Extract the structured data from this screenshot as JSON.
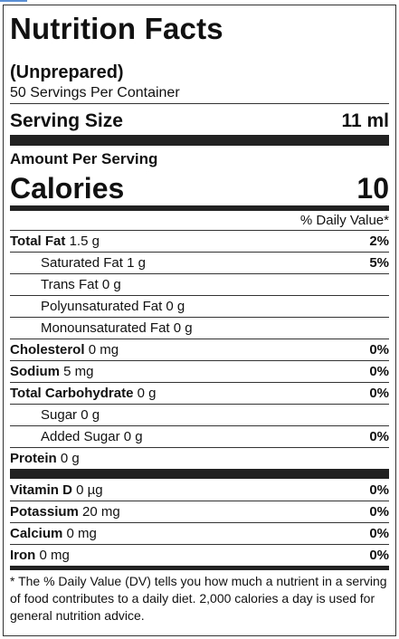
{
  "title": "Nutrition Facts",
  "subtitle": "(Unprepared)",
  "servings_per_container": "50 Servings Per Container",
  "serving_size": {
    "label": "Serving Size",
    "value": "11 ml"
  },
  "amount_per_serving": "Amount Per Serving",
  "calories": {
    "label": "Calories",
    "value": "10"
  },
  "daily_value_header": "% Daily Value*",
  "nutrients": [
    {
      "name": "Total Fat",
      "amount": "1.5 g",
      "dv": "2%"
    },
    {
      "name": "Saturated Fat",
      "amount": "1 g",
      "dv": "5%"
    },
    {
      "name": "Trans Fat",
      "amount": "0 g",
      "dv": ""
    },
    {
      "name": "Polyunsaturated Fat",
      "amount": "0 g",
      "dv": ""
    },
    {
      "name": "Monounsaturated Fat",
      "amount": "0 g",
      "dv": ""
    },
    {
      "name": "Cholesterol",
      "amount": "0 mg",
      "dv": "0%"
    },
    {
      "name": "Sodium",
      "amount": "5 mg",
      "dv": "0%"
    },
    {
      "name": "Total Carbohydrate",
      "amount": "0 g",
      "dv": "0%"
    },
    {
      "name": "Sugar",
      "amount": "0 g",
      "dv": ""
    },
    {
      "name": "Added Sugar",
      "amount": "0 g",
      "dv": "0%"
    },
    {
      "name": "Protein",
      "amount": "0 g",
      "dv": ""
    }
  ],
  "vitamins": [
    {
      "name": "Vitamin D",
      "amount": "0 µg",
      "dv": "0%"
    },
    {
      "name": "Potassium",
      "amount": "20 mg",
      "dv": "0%"
    },
    {
      "name": "Calcium",
      "amount": "0 mg",
      "dv": "0%"
    },
    {
      "name": "Iron",
      "amount": "0 mg",
      "dv": "0%"
    }
  ],
  "footnote": "* The % Daily Value (DV) tells you how much a nutrient in a serving of food contributes to a daily diet. 2,000 calories a day is used for general nutrition advice.",
  "colors": {
    "text": "#111111",
    "bars": "#222222",
    "accent": "#5a8fd6"
  }
}
